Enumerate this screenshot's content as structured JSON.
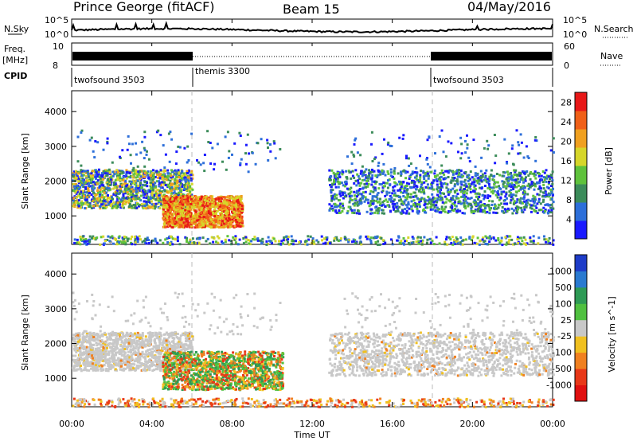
{
  "header": {
    "station": "Prince George (fitACF)",
    "beam": "Beam 15",
    "date": "04/May/2016"
  },
  "top_panels": {
    "nsky_label": "N.Sky",
    "nsky_ticks": [
      "10^5",
      "10^0"
    ],
    "nsearch_label": "N.Search",
    "freq_label": "Freq.",
    "freq_unit": "[MHz]",
    "freq_ticks": [
      "10",
      "8"
    ],
    "nave_ticks": [
      "60",
      "0"
    ],
    "nave_label": "Nave",
    "cpid_label": "CPID",
    "cpid_segments": [
      {
        "name": "twofsound 3503",
        "start": 0,
        "end": 6
      },
      {
        "name": "themis 3300",
        "start": 6,
        "end": 18
      },
      {
        "name": "twofsound 3503",
        "start": 18,
        "end": 24
      }
    ]
  },
  "chart_data": [
    {
      "type": "heatmap",
      "title": "",
      "xlabel": "",
      "ylabel": "Slant Range [km]",
      "xlim": [
        0,
        24
      ],
      "ylim": [
        180,
        4600
      ],
      "yticks": [
        1000,
        2000,
        3000,
        4000
      ],
      "colorbar": {
        "label": "Power [dB]",
        "ticks": [
          4,
          8,
          12,
          16,
          20,
          24,
          28
        ],
        "range": [
          0,
          30
        ],
        "colors": [
          "#1a1aff",
          "#2d6fd9",
          "#3c8c5a",
          "#5fc23c",
          "#d6d62a",
          "#f0a020",
          "#f06018",
          "#e81818"
        ]
      },
      "scatter_regions": [
        {
          "t0": 0.0,
          "t1": 6.0,
          "r0": 1250,
          "r1": 2350,
          "level": "mixed"
        },
        {
          "t0": 4.5,
          "t1": 8.5,
          "r0": 700,
          "r1": 1600,
          "level": "strong"
        },
        {
          "t0": 12.8,
          "t1": 24.0,
          "r0": 1100,
          "r1": 2350,
          "level": "weak"
        }
      ]
    },
    {
      "type": "heatmap",
      "title": "",
      "xlabel": "Time UT",
      "ylabel": "Slant Range [km]",
      "xlim": [
        0,
        24
      ],
      "ylim": [
        180,
        4600
      ],
      "xticks": [
        "00:00",
        "04:00",
        "08:00",
        "12:00",
        "16:00",
        "20:00",
        "00:00"
      ],
      "yticks": [
        1000,
        2000,
        3000,
        4000
      ],
      "colorbar": {
        "label": "Velocity [m s^-1]",
        "ticks": [
          1000,
          500,
          100,
          25,
          -25,
          -100,
          -500,
          -1000
        ],
        "colors": [
          "#1e3cc8",
          "#2a7ad0",
          "#2e9a55",
          "#50c040",
          "#c8c8c8",
          "#f0c020",
          "#f08020",
          "#e83818",
          "#e01010"
        ]
      },
      "scatter_regions": [
        {
          "t0": 0.0,
          "t1": 6.0,
          "r0": 1250,
          "r1": 2350,
          "level": "ground"
        },
        {
          "t0": 4.5,
          "t1": 10.5,
          "r0": 700,
          "r1": 1800,
          "level": "flow"
        },
        {
          "t0": 12.8,
          "t1": 24.0,
          "r0": 1100,
          "r1": 2350,
          "level": "ground"
        }
      ]
    }
  ]
}
